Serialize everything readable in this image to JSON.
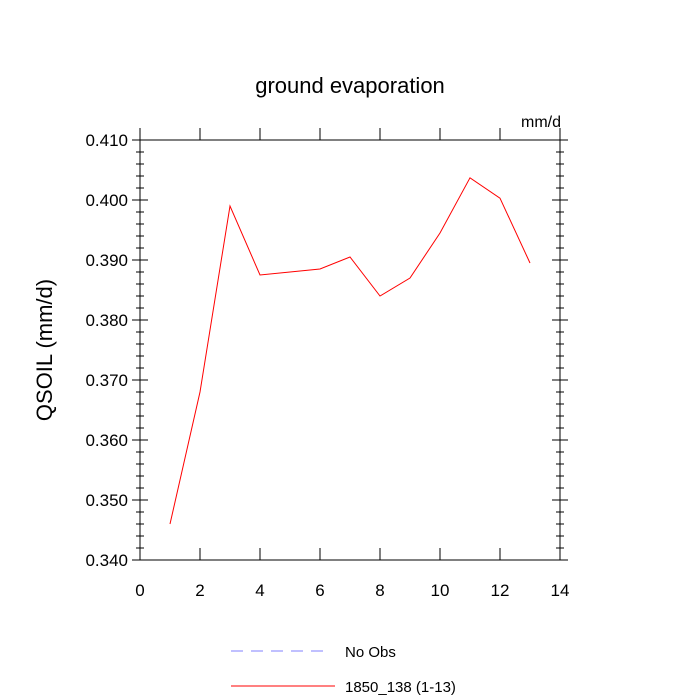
{
  "chart_data": {
    "type": "line",
    "title": "ground evaporation",
    "units_label": "mm/d",
    "ylabel": "QSOIL  (mm/d)",
    "xlabel": "",
    "xlim": [
      0,
      14
    ],
    "ylim": [
      0.34,
      0.41
    ],
    "x_ticks": [
      0,
      2,
      4,
      6,
      8,
      10,
      12,
      14
    ],
    "y_ticks": [
      0.34,
      0.35,
      0.36,
      0.37,
      0.38,
      0.39,
      0.4,
      0.41
    ],
    "x_tick_labels": [
      "0",
      "2",
      "4",
      "6",
      "8",
      "10",
      "12",
      "14"
    ],
    "y_tick_labels": [
      "0.340",
      "0.350",
      "0.360",
      "0.370",
      "0.380",
      "0.390",
      "0.400",
      "0.410"
    ],
    "grid": false,
    "legend_position": "bottom",
    "series": [
      {
        "name": "1850_138 (1-13)",
        "color": "#ff0000",
        "dash": "solid",
        "x": [
          1,
          2,
          3,
          4,
          5,
          6,
          7,
          8,
          9,
          10,
          11,
          12,
          13
        ],
        "y": [
          0.346,
          0.368,
          0.399,
          0.3875,
          0.388,
          0.3885,
          0.3905,
          0.384,
          0.387,
          0.3945,
          0.4037,
          0.4003,
          0.3895
        ]
      }
    ],
    "legend": [
      {
        "label": "No Obs",
        "color": "#8080ff",
        "dash": "dashed"
      },
      {
        "label": "1850_138 (1-13)",
        "color": "#ff0000",
        "dash": "solid"
      }
    ]
  }
}
